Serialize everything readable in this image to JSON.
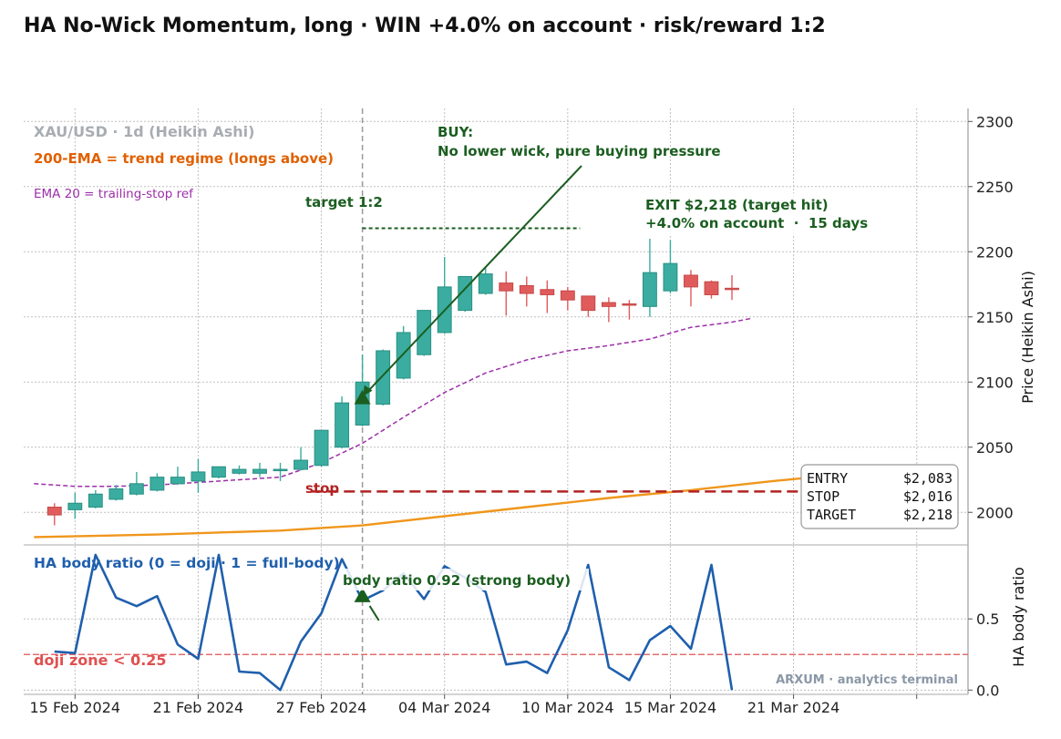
{
  "title": "HA No-Wick Momentum, long · WIN +4.0% on account · risk/reward 1:2",
  "colors": {
    "bull": "#3aada0",
    "bear": "#e05c5c",
    "ema200": "#f0961c",
    "ema20": "#9c2ea8",
    "ratio": "#1f5fad",
    "annot": "#1b5e20",
    "stop": "#b22222",
    "doji": "#e05050",
    "grid": "#bfbfbf",
    "cursor": "#999999"
  },
  "chart_data": [
    {
      "type": "candlestick",
      "symbol_label": "XAU/USD · 1d (Heikin Ashi)",
      "ylabel": "Price (Heikin Ashi)",
      "ylim": [
        1975,
        2310
      ],
      "yticks": [
        2000,
        2050,
        2100,
        2150,
        2200,
        2250,
        2300
      ],
      "x_ticks": [
        {
          "day": 0,
          "label": "15 Feb 2024"
        },
        {
          "day": 6,
          "label": "21 Feb 2024"
        },
        {
          "day": 12,
          "label": "27 Feb 2024"
        },
        {
          "day": 18,
          "label": "04 Mar 2024"
        },
        {
          "day": 24,
          "label": "10 Mar 2024"
        },
        {
          "day": 29,
          "label": "15 Mar 2024"
        },
        {
          "day": 35,
          "label": "21 Mar 2024"
        },
        {
          "day": 41,
          "label": ""
        }
      ],
      "x_range": [
        -2.5,
        43.5
      ],
      "candles": [
        {
          "day": -1,
          "o": 2004,
          "h": 2007,
          "l": 1990,
          "c": 1998
        },
        {
          "day": 0,
          "o": 2002,
          "h": 2015,
          "l": 1995,
          "c": 2007
        },
        {
          "day": 1,
          "o": 2004,
          "h": 2017,
          "l": 2003,
          "c": 2014
        },
        {
          "day": 2,
          "o": 2010,
          "h": 2021,
          "l": 2009,
          "c": 2018
        },
        {
          "day": 3,
          "o": 2014,
          "h": 2031,
          "l": 2013,
          "c": 2022
        },
        {
          "day": 4,
          "o": 2017,
          "h": 2030,
          "l": 2016,
          "c": 2027
        },
        {
          "day": 5,
          "o": 2022,
          "h": 2035,
          "l": 2021,
          "c": 2027
        },
        {
          "day": 6,
          "o": 2024,
          "h": 2041,
          "l": 2015,
          "c": 2031
        },
        {
          "day": 7,
          "o": 2027,
          "h": 2035,
          "l": 2026,
          "c": 2035
        },
        {
          "day": 8,
          "o": 2030,
          "h": 2036,
          "l": 2029,
          "c": 2033
        },
        {
          "day": 9,
          "o": 2030,
          "h": 2038,
          "l": 2027,
          "c": 2033
        },
        {
          "day": 10,
          "o": 2032,
          "h": 2038,
          "l": 2024,
          "c": 2033
        },
        {
          "day": 11,
          "o": 2033,
          "h": 2050,
          "l": 2032,
          "c": 2040
        },
        {
          "day": 12,
          "o": 2036,
          "h": 2063,
          "l": 2035,
          "c": 2063
        },
        {
          "day": 13,
          "o": 2050,
          "h": 2089,
          "l": 2049,
          "c": 2084
        },
        {
          "day": 14,
          "o": 2067,
          "h": 2121,
          "l": 2066,
          "c": 2100
        },
        {
          "day": 15,
          "o": 2083,
          "h": 2125,
          "l": 2082,
          "c": 2124
        },
        {
          "day": 16,
          "o": 2103,
          "h": 2143,
          "l": 2102,
          "c": 2138
        },
        {
          "day": 17,
          "o": 2121,
          "h": 2155,
          "l": 2120,
          "c": 2155
        },
        {
          "day": 18,
          "o": 2138,
          "h": 2196,
          "l": 2137,
          "c": 2173
        },
        {
          "day": 19,
          "o": 2155,
          "h": 2181,
          "l": 2154,
          "c": 2181
        },
        {
          "day": 20,
          "o": 2168,
          "h": 2189,
          "l": 2167,
          "c": 2183
        },
        {
          "day": 21,
          "o": 2176,
          "h": 2185,
          "l": 2151,
          "c": 2170
        },
        {
          "day": 22,
          "o": 2174,
          "h": 2181,
          "l": 2158,
          "c": 2168
        },
        {
          "day": 23,
          "o": 2171,
          "h": 2178,
          "l": 2153,
          "c": 2167
        },
        {
          "day": 24,
          "o": 2170,
          "h": 2173,
          "l": 2155,
          "c": 2163
        },
        {
          "day": 25,
          "o": 2166,
          "h": 2166,
          "l": 2150,
          "c": 2155
        },
        {
          "day": 26,
          "o": 2161,
          "h": 2165,
          "l": 2146,
          "c": 2158
        },
        {
          "day": 27,
          "o": 2160,
          "h": 2163,
          "l": 2148,
          "c": 2159
        },
        {
          "day": 28,
          "o": 2158,
          "h": 2210,
          "l": 2150,
          "c": 2184
        },
        {
          "day": 29,
          "o": 2170,
          "h": 2209,
          "l": 2168,
          "c": 2191
        },
        {
          "day": 30,
          "o": 2182,
          "h": 2186,
          "l": 2158,
          "c": 2173
        },
        {
          "day": 31,
          "o": 2177,
          "h": 2178,
          "l": 2164,
          "c": 2167
        },
        {
          "day": 32,
          "o": 2172,
          "h": 2182,
          "l": 2163,
          "c": 2171
        }
      ],
      "ema200": {
        "label": "200-EMA = trend regime (longs above)",
        "x": [
          -2,
          4,
          10,
          14,
          18,
          22,
          26,
          30,
          34,
          36
        ],
        "y": [
          1981,
          1983,
          1986,
          1990,
          1997,
          2004,
          2011,
          2017,
          2024,
          2027
        ]
      },
      "ema20": {
        "label": "EMA 20 = trailing-stop ref",
        "x": [
          -2,
          0,
          2,
          4,
          6,
          8,
          10,
          12,
          14,
          16,
          18,
          20,
          22,
          24,
          26,
          28,
          30,
          32,
          33
        ],
        "y": [
          2022,
          2020,
          2020,
          2021,
          2023,
          2025,
          2027,
          2038,
          2053,
          2073,
          2092,
          2107,
          2117,
          2124,
          2128,
          2133,
          2142,
          2146,
          2149
        ]
      },
      "entry_day": 14,
      "buy_label": "BUY:",
      "buy_note": "No lower wick, pure buying pressure",
      "target_label": "target 1:2",
      "stop_label": "stop",
      "exit_label": "EXIT $2,218 (target hit)",
      "exit_result": "+4.0% on account  ·  15 days",
      "entry_price": 2083,
      "stop_price": 2016,
      "target_price": 2218,
      "trade_box": [
        {
          "key": "ENTRY",
          "value": "$2,083"
        },
        {
          "key": "STOP",
          "value": "$2,016"
        },
        {
          "key": "TARGET",
          "value": "$2,218"
        }
      ]
    },
    {
      "type": "line",
      "title": "HA body ratio (0 = doji · 1 = full-body)",
      "ylabel": "HA body ratio",
      "ylim": [
        -0.03,
        1.02
      ],
      "yticks": [
        0.0,
        0.5
      ],
      "ytick_labels": [
        "0.0",
        "0.5"
      ],
      "doji_threshold": 0.25,
      "doji_label": "doji zone < 0.25",
      "annotation": "body ratio 0.92 (strong body)",
      "x": [
        -1,
        0,
        1,
        2,
        3,
        4,
        5,
        6,
        7,
        8,
        9,
        10,
        11,
        12,
        13,
        14,
        15,
        16,
        17,
        18,
        19,
        20,
        21,
        22,
        23,
        24,
        25,
        26,
        27,
        28,
        29,
        30,
        31,
        32
      ],
      "values": [
        0.27,
        0.26,
        0.95,
        0.65,
        0.59,
        0.66,
        0.32,
        0.22,
        0.95,
        0.13,
        0.12,
        0.0,
        0.34,
        0.54,
        0.92,
        0.63,
        0.7,
        0.82,
        0.64,
        0.87,
        0.79,
        0.69,
        0.18,
        0.2,
        0.12,
        0.42,
        0.88,
        0.16,
        0.07,
        0.35,
        0.45,
        0.29,
        0.88,
        0.0
      ]
    }
  ],
  "watermark": "ARXUM · analytics terminal"
}
